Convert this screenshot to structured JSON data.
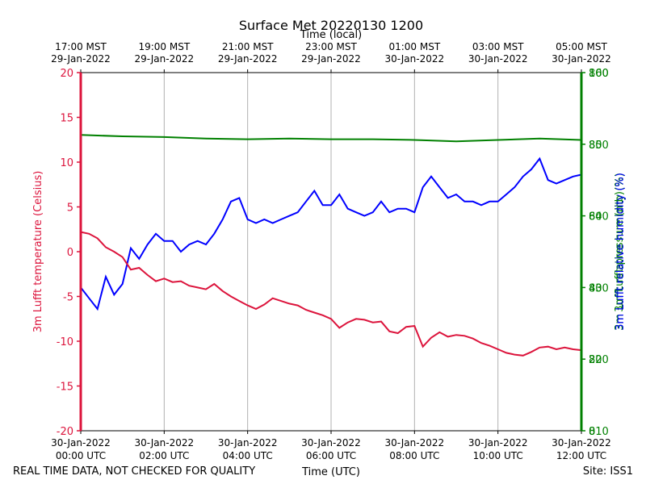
{
  "chart_data": {
    "type": "line",
    "title": "Surface Met 20220130 1200",
    "top_axis_label": "Time (local)",
    "xlabel": "Time (UTC)",
    "footer_left": "REAL TIME DATA, NOT CHECKED FOR QUALITY",
    "footer_right": "Site: ISS1",
    "x_range_hours": [
      0,
      12
    ],
    "x_ticks": [
      {
        "hour": 0,
        "line1": "30-Jan-2022",
        "line2": "00:00 UTC"
      },
      {
        "hour": 2,
        "line1": "30-Jan-2022",
        "line2": "02:00 UTC"
      },
      {
        "hour": 4,
        "line1": "30-Jan-2022",
        "line2": "04:00 UTC"
      },
      {
        "hour": 6,
        "line1": "30-Jan-2022",
        "line2": "06:00 UTC"
      },
      {
        "hour": 8,
        "line1": "30-Jan-2022",
        "line2": "08:00 UTC"
      },
      {
        "hour": 10,
        "line1": "30-Jan-2022",
        "line2": "10:00 UTC"
      },
      {
        "hour": 12,
        "line1": "30-Jan-2022",
        "line2": "12:00 UTC"
      }
    ],
    "top_ticks": [
      {
        "hour": 0,
        "line1": "17:00 MST",
        "line2": "29-Jan-2022"
      },
      {
        "hour": 2,
        "line1": "19:00 MST",
        "line2": "29-Jan-2022"
      },
      {
        "hour": 4,
        "line1": "21:00 MST",
        "line2": "29-Jan-2022"
      },
      {
        "hour": 6,
        "line1": "23:00 MST",
        "line2": "29-Jan-2022"
      },
      {
        "hour": 8,
        "line1": "01:00 MST",
        "line2": "30-Jan-2022"
      },
      {
        "hour": 10,
        "line1": "03:00 MST",
        "line2": "30-Jan-2022"
      },
      {
        "hour": 12,
        "line1": "05:00 MST",
        "line2": "30-Jan-2022"
      }
    ],
    "left_axis": {
      "label": "3m Lufft temperature (Celsius)",
      "ylim": [
        -20,
        20
      ],
      "ticks": [
        -20,
        -15,
        -10,
        -5,
        0,
        5,
        10,
        15,
        20
      ],
      "color": "#dc143c"
    },
    "right_axis_green": {
      "label": "3m Lufft pressure (mb)",
      "ylim": [
        810,
        860
      ],
      "ticks": [
        810,
        820,
        830,
        840,
        850,
        860
      ],
      "color": "#008000"
    },
    "right_axis_green_overlap": {
      "label": "3m Lufft relative humidity (%)",
      "ylim": [
        0,
        100
      ],
      "ticks": [
        0,
        20,
        40,
        60,
        80,
        100
      ],
      "color": "#008000"
    },
    "right_axis_blue": {
      "label": "3m Lufft relative humidity (%)",
      "color": "#0000ff"
    },
    "grid": "vertical",
    "series": [
      {
        "name": "temperature",
        "axis": "left",
        "color": "#dc143c",
        "x": [
          0,
          0.2,
          0.4,
          0.6,
          0.8,
          1.0,
          1.2,
          1.4,
          1.6,
          1.8,
          2.0,
          2.2,
          2.4,
          2.6,
          2.8,
          3.0,
          3.2,
          3.4,
          3.6,
          3.8,
          4.0,
          4.2,
          4.4,
          4.6,
          4.8,
          5.0,
          5.2,
          5.4,
          5.6,
          5.8,
          6.0,
          6.2,
          6.4,
          6.6,
          6.8,
          7.0,
          7.2,
          7.4,
          7.6,
          7.8,
          8.0,
          8.2,
          8.4,
          8.6,
          8.8,
          9.0,
          9.2,
          9.4,
          9.6,
          9.8,
          10.0,
          10.2,
          10.4,
          10.6,
          10.8,
          11.0,
          11.2,
          11.4,
          11.6,
          11.8,
          12.0
        ],
        "values": [
          2.2,
          2.0,
          1.5,
          0.5,
          0.0,
          -0.6,
          -2.0,
          -1.8,
          -2.6,
          -3.3,
          -3.0,
          -3.4,
          -3.3,
          -3.8,
          -4.0,
          -4.2,
          -3.6,
          -4.4,
          -5.0,
          -5.5,
          -6.0,
          -6.4,
          -5.9,
          -5.2,
          -5.5,
          -5.8,
          -6.0,
          -6.5,
          -6.8,
          -7.1,
          -7.5,
          -8.5,
          -7.9,
          -7.5,
          -7.6,
          -7.9,
          -7.8,
          -8.9,
          -9.1,
          -8.4,
          -8.3,
          -10.6,
          -9.6,
          -9.0,
          -9.5,
          -9.3,
          -9.4,
          -9.7,
          -10.2,
          -10.5,
          -10.9,
          -11.3,
          -11.5,
          -11.6,
          -11.2,
          -10.7,
          -10.6,
          -10.9,
          -10.7,
          -10.9,
          -11.0
        ]
      },
      {
        "name": "pressure",
        "axis": "right_green",
        "color": "#008000",
        "x": [
          0,
          1,
          2,
          3,
          4,
          5,
          6,
          7,
          8,
          9,
          10,
          11,
          12
        ],
        "values": [
          851.3,
          851.1,
          851.0,
          850.8,
          850.7,
          850.8,
          850.7,
          850.7,
          850.6,
          850.4,
          850.6,
          850.8,
          850.6
        ]
      },
      {
        "name": "relative humidity",
        "axis": "right_humidity",
        "color": "#0000ff",
        "x": [
          0,
          0.2,
          0.4,
          0.6,
          0.8,
          1.0,
          1.2,
          1.4,
          1.6,
          1.8,
          2.0,
          2.2,
          2.4,
          2.6,
          2.8,
          3.0,
          3.2,
          3.4,
          3.6,
          3.8,
          4.0,
          4.2,
          4.4,
          4.6,
          4.8,
          5.0,
          5.2,
          5.4,
          5.6,
          5.8,
          6.0,
          6.2,
          6.4,
          6.6,
          6.8,
          7.0,
          7.2,
          7.4,
          7.6,
          7.8,
          8.0,
          8.2,
          8.4,
          8.6,
          8.8,
          9.0,
          9.2,
          9.4,
          9.6,
          9.8,
          10.0,
          10.2,
          10.4,
          10.6,
          10.8,
          11.0,
          11.2,
          11.4,
          11.6,
          11.8,
          12.0
        ],
        "values": [
          40.0,
          37.0,
          34.0,
          43.0,
          38.0,
          41.0,
          51.0,
          48.0,
          52.0,
          55.0,
          53.0,
          53.0,
          50.0,
          52.0,
          53.0,
          52.0,
          55.0,
          59.0,
          64.0,
          65.0,
          59.0,
          58.0,
          59.0,
          58.0,
          59.0,
          60.0,
          61.0,
          64.0,
          67.0,
          63.0,
          63.0,
          66.0,
          62.0,
          61.0,
          60.0,
          61.0,
          64.0,
          61.0,
          62.0,
          62.0,
          61.0,
          68.0,
          71.0,
          68.0,
          65.0,
          66.0,
          64.0,
          64.0,
          63.0,
          64.0,
          64.0,
          66.0,
          68.0,
          71.0,
          73.0,
          76.0,
          70.0,
          69.0,
          70.0,
          71.0,
          71.5
        ]
      }
    ]
  }
}
